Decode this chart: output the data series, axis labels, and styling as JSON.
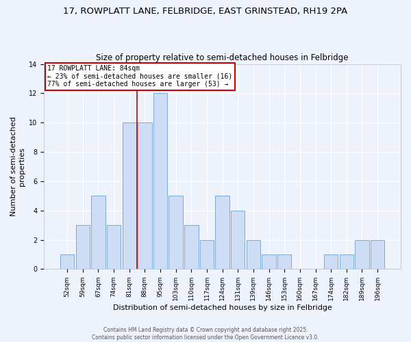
{
  "title_line1": "17, ROWPLATT LANE, FELBRIDGE, EAST GRINSTEAD, RH19 2PA",
  "title_line2": "Size of property relative to semi-detached houses in Felbridge",
  "xlabel": "Distribution of semi-detached houses by size in Felbridge",
  "ylabel": "Number of semi-detached\nproperties",
  "categories": [
    "52sqm",
    "59sqm",
    "67sqm",
    "74sqm",
    "81sqm",
    "88sqm",
    "95sqm",
    "103sqm",
    "110sqm",
    "117sqm",
    "124sqm",
    "131sqm",
    "139sqm",
    "146sqm",
    "153sqm",
    "160sqm",
    "167sqm",
    "174sqm",
    "182sqm",
    "189sqm",
    "196sqm"
  ],
  "values": [
    1,
    3,
    5,
    3,
    10,
    10,
    12,
    5,
    3,
    2,
    5,
    4,
    2,
    1,
    1,
    0,
    0,
    1,
    1,
    2,
    2
  ],
  "bar_color": "#cdddf5",
  "bar_edge_color": "#7aaad4",
  "red_line_x": 4.5,
  "annotation_title": "17 ROWPLATT LANE: 84sqm",
  "annotation_line2": "← 23% of semi-detached houses are smaller (16)",
  "annotation_line3": "77% of semi-detached houses are larger (53) →",
  "annotation_box_color": "white",
  "annotation_box_edge_color": "#cc0000",
  "ylim": [
    0,
    14
  ],
  "yticks": [
    0,
    2,
    4,
    6,
    8,
    10,
    12,
    14
  ],
  "footer_line1": "Contains HM Land Registry data © Crown copyright and database right 2025.",
  "footer_line2": "Contains public sector information licensed under the Open Government Licence v3.0.",
  "background_color": "#eef2fb",
  "grid_color": "#ffffff",
  "title_fontsize": 9.5,
  "subtitle_fontsize": 8.5,
  "label_fontsize": 8,
  "tick_fontsize": 6.5,
  "footer_fontsize": 5.5
}
